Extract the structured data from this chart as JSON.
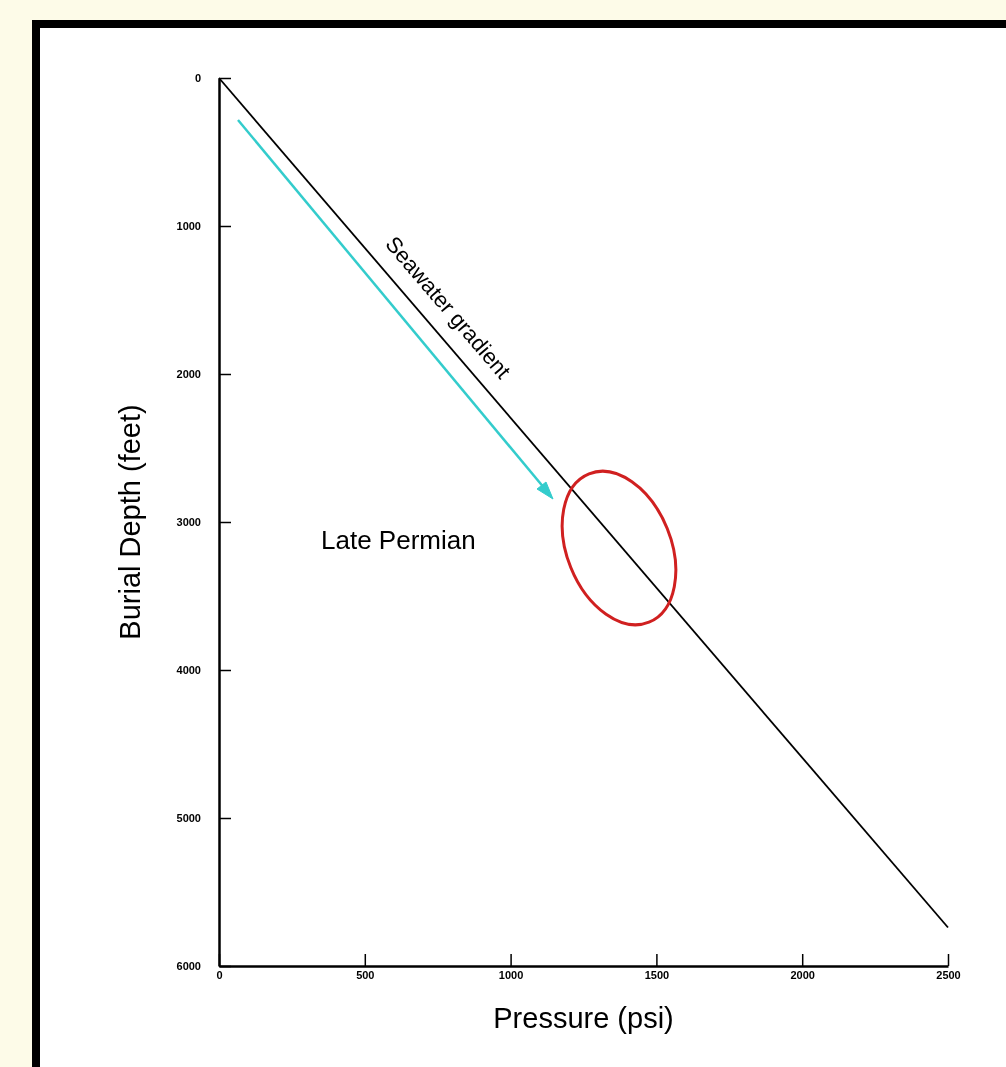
{
  "chart_data": {
    "type": "line",
    "xlabel": "Pressure (psi)",
    "ylabel": "Burial Depth (feet)",
    "x": [
      0,
      2500
    ],
    "series": [
      {
        "color": "#000000",
        "values": [
          0,
          5740
        ]
      }
    ],
    "xlim": [
      0,
      2500
    ],
    "xticks": [
      0,
      500,
      1000,
      1500,
      2000,
      2500
    ],
    "ylim": [
      6000,
      0
    ],
    "yticks": [
      0,
      1000,
      2000,
      3000,
      4000,
      5000,
      6000
    ],
    "annotations": [
      "Seawater gradient",
      "Late Permian"
    ],
    "grid": false,
    "marker": "none",
    "line_style": "solid"
  }
}
